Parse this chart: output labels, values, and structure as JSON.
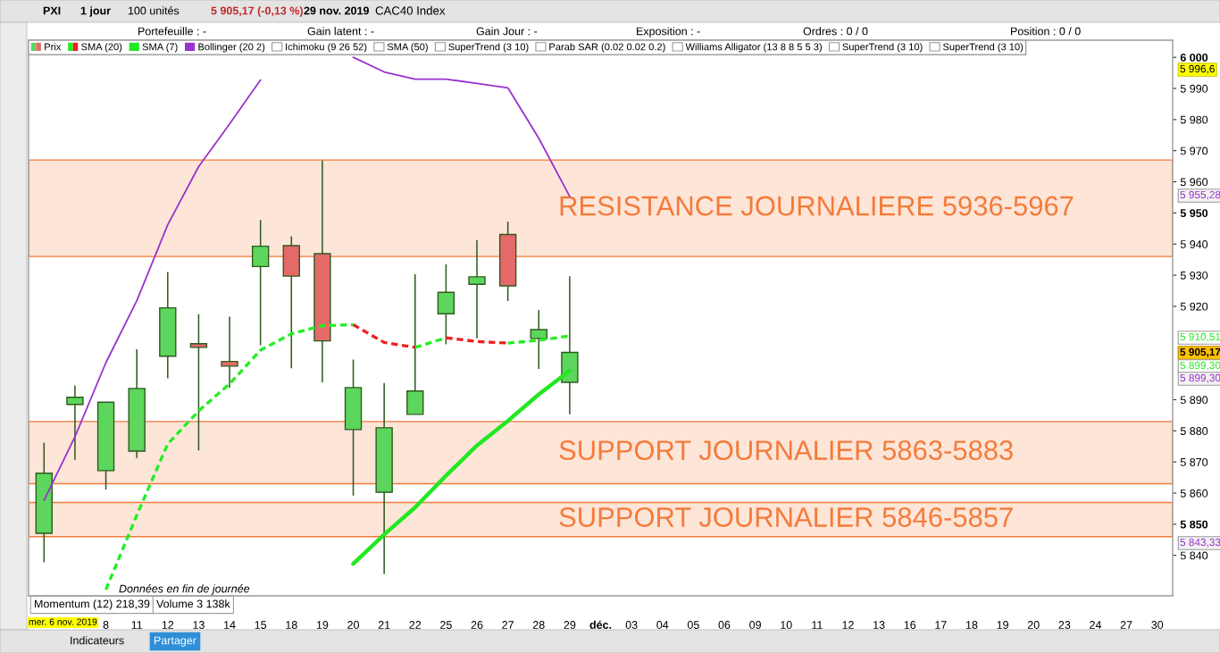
{
  "chart_data": {
    "type": "candlestick",
    "title": "CAC40 Index",
    "categories": [
      null,
      null,
      "8",
      "11",
      "12",
      "13",
      "14",
      "15",
      "18",
      "19",
      "20",
      "21",
      "22",
      "25",
      "26",
      "27",
      "28",
      "29",
      "déc.",
      "03",
      "04",
      "05",
      "06",
      "09",
      "10",
      "11",
      "12",
      "13",
      "16",
      "17",
      "18",
      "19",
      "20",
      "23",
      "24",
      "27",
      "30"
    ],
    "series": [
      {
        "name": "Prix",
        "ohlc": [
          [
            5847.1,
            5876.2,
            5837.8,
            5866.4
          ],
          [
            5888.5,
            5894.6,
            5870.7,
            5890.8
          ],
          [
            5867.2,
            5889.2,
            5861.1,
            5889.2
          ],
          [
            5873.5,
            5906.2,
            5871.3,
            5893.6
          ],
          [
            5904.0,
            5931.0,
            5896.9,
            5919.5
          ],
          [
            5908.0,
            5917.5,
            5873.7,
            5906.8
          ],
          [
            5902.3,
            5916.7,
            5893.9,
            5900.8
          ],
          [
            5932.8,
            5947.7,
            5907.5,
            5939.3
          ],
          [
            5939.5,
            5942.5,
            5900.1,
            5929.7
          ],
          [
            5936.9,
            5966.8,
            5895.6,
            5908.9
          ],
          [
            5880.4,
            5902.9,
            5859.2,
            5893.9
          ],
          [
            5860.3,
            5895.4,
            5834.0,
            5881.0
          ],
          [
            5885.3,
            5930.3,
            5885.3,
            5892.8
          ],
          [
            5917.6,
            5933.5,
            5907.8,
            5924.5
          ],
          [
            5927.1,
            5941.3,
            5909.7,
            5929.5
          ],
          [
            5943.1,
            5947.2,
            5921.7,
            5926.6
          ],
          [
            5909.7,
            5918.8,
            5899.9,
            5912.5
          ],
          [
            5895.6,
            5929.7,
            5885.3,
            5905.2
          ],
          null,
          null,
          null,
          null,
          null,
          null,
          null,
          null,
          null,
          null,
          null,
          null,
          null,
          null,
          null,
          null,
          null,
          null,
          null
        ],
        "colors": [
          "#5cd65c",
          "#5cd65c",
          "#5cd65c",
          "#5cd65c",
          "#5cd65c",
          "#e46a6a",
          "#e46a6a",
          "#5cd65c",
          "#e46a6a",
          "#e46a6a",
          "#5cd65c",
          "#5cd65c",
          "#5cd65c",
          "#5cd65c",
          "#5cd65c",
          "#e46a6a",
          "#5cd65c",
          "#5cd65c",
          null,
          null,
          null,
          null,
          null,
          null,
          null,
          null,
          null,
          null,
          null,
          null,
          null,
          null,
          null,
          null,
          null,
          null,
          null
        ]
      },
      {
        "name": "SMA (20)",
        "type": "line",
        "line_style": "dashed",
        "color": "#22ee22",
        "values": [
          null,
          null,
          5829,
          5852.9,
          5875.8,
          5886.4,
          5895.1,
          5905.9,
          5911.2,
          5913.8,
          5914.1,
          null,
          5906.8,
          5909.9,
          null,
          5908.2,
          5909.1,
          5910.5,
          null,
          null,
          null,
          null,
          null,
          null,
          null,
          null,
          null,
          null,
          null,
          null,
          null,
          null,
          null,
          null,
          null,
          null,
          null
        ]
      },
      {
        "type": "line",
        "line_style": "dashed",
        "color": "#ee2020",
        "values": [
          null,
          null,
          null,
          null,
          null,
          null,
          null,
          null,
          null,
          null,
          5914.1,
          5908.4,
          5906.8,
          null,
          null,
          null,
          null,
          null,
          null,
          null,
          null,
          null,
          null,
          null,
          null,
          null,
          null,
          null,
          null,
          null,
          null,
          null,
          null,
          null,
          null,
          null,
          null
        ]
      },
      {
        "type": "line",
        "line_style": "dashed",
        "color": "#ee2020",
        "values": [
          null,
          null,
          null,
          null,
          null,
          null,
          null,
          null,
          null,
          null,
          null,
          null,
          null,
          5909.9,
          5908.7,
          5908.2,
          null,
          null,
          null,
          null,
          null,
          null,
          null,
          null,
          null,
          null,
          null,
          null,
          null,
          null,
          null,
          null,
          null,
          null,
          null,
          null,
          null
        ]
      },
      {
        "name": "SMA (7)",
        "type": "line",
        "line_style": "solid",
        "color": "#22e822",
        "values": [
          null,
          null,
          null,
          null,
          null,
          null,
          null,
          null,
          null,
          null,
          5837.3,
          5846.7,
          5855.4,
          5865.6,
          5875.3,
          5883.2,
          5891.7,
          5899.3,
          null,
          null,
          null,
          null,
          null,
          null,
          null,
          null,
          null,
          null,
          null,
          null,
          null,
          null,
          null,
          null,
          null,
          null,
          null
        ]
      },
      {
        "name": "Bollinger (20 2)",
        "type": "line",
        "line_style": "solid",
        "color": "#9933cc",
        "values": [
          5857.7,
          5878.1,
          5901.9,
          5921.8,
          5946.2,
          5964.9,
          5978.6,
          5992.7,
          null,
          null,
          6000.0,
          5995.3,
          5993.0,
          5993.0,
          5991.6,
          5990.2,
          5974.0,
          5955.3,
          null,
          null,
          null,
          null,
          null,
          null,
          null,
          null,
          null,
          null,
          null,
          null,
          null,
          null,
          null,
          null,
          null,
          null,
          null
        ]
      }
    ],
    "ylim": [
      5827,
      6005.5
    ],
    "yticks": [
      {
        "value": 5840,
        "label": "5 840"
      },
      {
        "value": 5850,
        "label": "5 850"
      },
      {
        "value": 5860,
        "label": "5 860"
      },
      {
        "value": 5870,
        "label": "5 870"
      },
      {
        "value": 5880,
        "label": "5 880"
      },
      {
        "value": 5890,
        "label": "5 890"
      },
      {
        "value": 5920,
        "label": "5 920"
      },
      {
        "value": 5930,
        "label": "5 930"
      },
      {
        "value": 5940,
        "label": "5 940"
      },
      {
        "value": 5950,
        "label": "5 950"
      },
      {
        "value": 5960,
        "label": "5 960"
      },
      {
        "value": 5970,
        "label": "5 970"
      },
      {
        "value": 5980,
        "label": "5 980"
      },
      {
        "value": 5990,
        "label": "5 990"
      },
      {
        "value": 6000,
        "label": "6 000"
      }
    ],
    "bands": [
      {
        "axis": "y",
        "from": 5936,
        "to": 5967,
        "label": "RESISTANCE JOURNALIERE 5936-5967",
        "color": "#f47b3a"
      },
      {
        "axis": "y",
        "from": 5863,
        "to": 5883,
        "label": "SUPPORT JOURNALIER 5863-5883",
        "color": "#f47b3a"
      },
      {
        "axis": "y",
        "from": 5846,
        "to": 5857,
        "label": "SUPPORT JOURNALIER 5846-5857",
        "color": "#f47b3a"
      }
    ],
    "legend": "top left",
    "annotations": [
      "PXI",
      "1 jour",
      "100 unités",
      "5 905,17 (-0,13 %)",
      "29 nov. 2019",
      "Portefeuille : -",
      "Gain latent : -",
      "Gain Jour : -",
      "Exposition : -",
      "Ordres : 0 / 0",
      "Position : 0 / 0",
      "Ichimoku (9 26 52)",
      "SMA (50)",
      "SuperTrend (3 10)",
      "Parab SAR (0.02 0.02 0.2)",
      "Williams Alligator (13 8 8 5 5 3)",
      "SuperTrend (3 10)",
      "SuperTrend (3 10)",
      "Données en fin de journée",
      "Momentum (12) 218,39",
      "Volume 3 138k",
      "mer. 6 nov. 2019",
      "Indicateurs",
      "Partager",
      "5 996,6",
      "5 955,28",
      "5 910,51",
      "5 905,17",
      "5 899,30",
      "5 899,30",
      "5 843,33"
    ]
  }
}
